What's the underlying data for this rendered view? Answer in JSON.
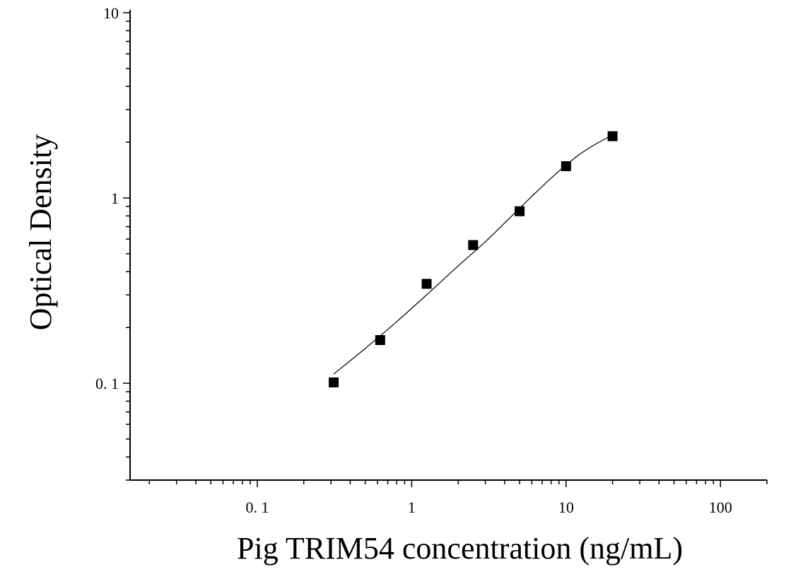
{
  "chart_data": {
    "type": "scatter",
    "title": "",
    "xlabel": "Pig TRIM54 concentration (ng/mL)",
    "ylabel": "Optical Density",
    "xscale": "log",
    "yscale": "log",
    "xlim": [
      0.015,
      200
    ],
    "ylim": [
      0.03,
      10
    ],
    "grid": false,
    "x_ticks": [
      {
        "value": 0.1,
        "label": "0. 1"
      },
      {
        "value": 1,
        "label": "1"
      },
      {
        "value": 10,
        "label": "10"
      },
      {
        "value": 100,
        "label": "100"
      }
    ],
    "y_ticks": [
      {
        "value": 0.1,
        "label": "0. 1"
      },
      {
        "value": 1,
        "label": "1"
      },
      {
        "value": 10,
        "label": "10"
      }
    ],
    "series": [
      {
        "marker": "square",
        "color": "#000000",
        "x": [
          0.3125,
          0.625,
          1.25,
          2.5,
          5,
          10,
          20
        ],
        "y": [
          0.101,
          0.171,
          0.344,
          0.557,
          0.848,
          1.485,
          2.155
        ]
      }
    ],
    "fit_curve": {
      "color": "#000000",
      "x": [
        0.3125,
        0.5,
        0.8,
        1.25,
        2,
        3,
        5,
        8,
        12,
        16,
        20
      ],
      "y": [
        0.112,
        0.154,
        0.215,
        0.3,
        0.43,
        0.58,
        0.88,
        1.28,
        1.7,
        1.98,
        2.19
      ]
    }
  }
}
